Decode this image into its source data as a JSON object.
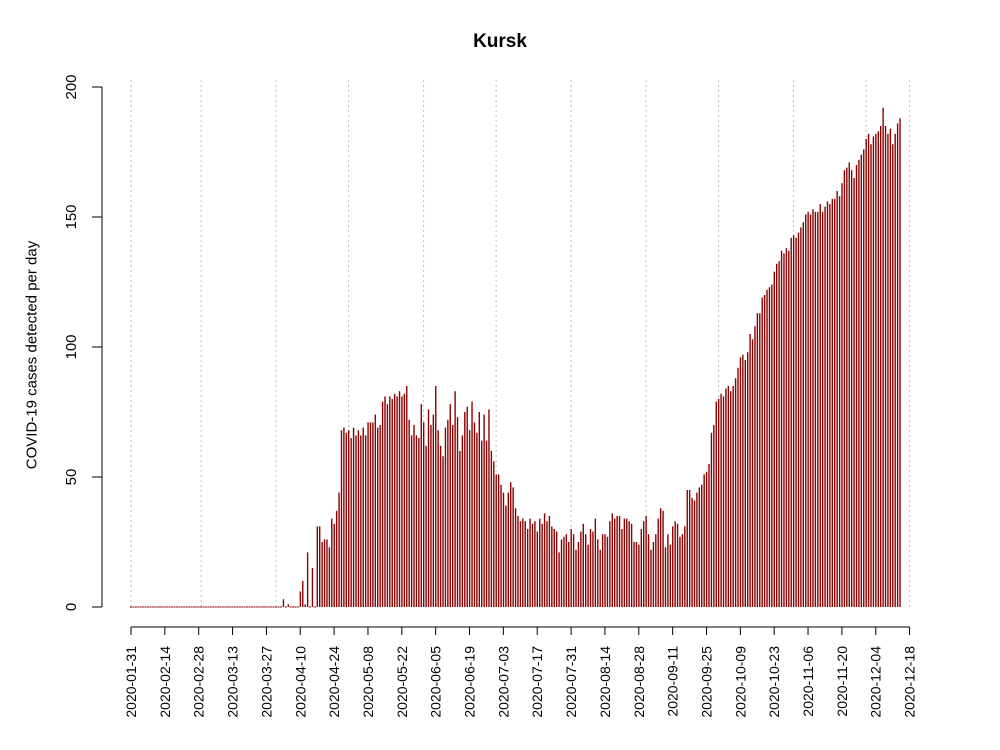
{
  "chart_data": {
    "type": "bar",
    "title": "Kursk",
    "ylabel": "COVID-19 cases detected per day",
    "xlabel": "",
    "ylim": [
      0,
      200
    ],
    "yticks": [
      0,
      50,
      100,
      150,
      200
    ],
    "x_start": "2020-01-31",
    "x_end": "2020-12-23",
    "xticks": [
      "2020-01-31",
      "2020-02-14",
      "2020-02-28",
      "2020-03-13",
      "2020-03-27",
      "2020-04-10",
      "2020-04-24",
      "2020-05-08",
      "2020-05-22",
      "2020-06-05",
      "2020-06-19",
      "2020-07-03",
      "2020-07-17",
      "2020-07-31",
      "2020-08-14",
      "2020-08-28",
      "2020-09-11",
      "2020-09-25",
      "2020-10-09",
      "2020-10-23",
      "2020-11-06",
      "2020-11-20",
      "2020-12-04",
      "2020-12-18"
    ],
    "gridlines_dates": [
      "2020-01-31",
      "2020-02-29",
      "2020-03-31",
      "2020-04-30",
      "2020-05-31",
      "2020-06-30",
      "2020-07-31",
      "2020-08-31",
      "2020-09-30",
      "2020-10-31",
      "2020-11-30",
      "2020-12-18"
    ],
    "bar_color": "#8b0000",
    "grid_color": "#bebebe",
    "series": [
      {
        "values": [
          0,
          0,
          0,
          0,
          0,
          0,
          0,
          0,
          0,
          0,
          0,
          0,
          0,
          0,
          0,
          0,
          0,
          0,
          0,
          0,
          0,
          0,
          0,
          0,
          0,
          0,
          0,
          0,
          0,
          0,
          0,
          0,
          0,
          0,
          0,
          0,
          0,
          0,
          0,
          0,
          0,
          0,
          0,
          0,
          0,
          0,
          0,
          0,
          0,
          0,
          0,
          0,
          0,
          0,
          0,
          0,
          0,
          0,
          0,
          0,
          0,
          0,
          0,
          3,
          0,
          1,
          0,
          0,
          0,
          0,
          6,
          10,
          1,
          21,
          0,
          15,
          0,
          31,
          31,
          25,
          26,
          26,
          23,
          34,
          32,
          37,
          44,
          68,
          69,
          67,
          68,
          65,
          69,
          66,
          68,
          66,
          69,
          66,
          71,
          71,
          71,
          74,
          69,
          70,
          79,
          81,
          78,
          81,
          80,
          82,
          81,
          83,
          81,
          82,
          85,
          72,
          66,
          70,
          66,
          65,
          78,
          71,
          62,
          76,
          70,
          74,
          85,
          68,
          62,
          58,
          69,
          72,
          78,
          70,
          83,
          73,
          60,
          66,
          75,
          77,
          68,
          79,
          71,
          67,
          75,
          64,
          74,
          64,
          76,
          60,
          56,
          51,
          51,
          47,
          44,
          39,
          44,
          48,
          46,
          38,
          35,
          33,
          34,
          33,
          30,
          34,
          32,
          33,
          29,
          34,
          32,
          36,
          33,
          35,
          31,
          30,
          29,
          21,
          26,
          27,
          28,
          25,
          30,
          28,
          22,
          25,
          29,
          32,
          28,
          24,
          30,
          29,
          34,
          26,
          22,
          28,
          28,
          27,
          33,
          36,
          34,
          35,
          35,
          30,
          34,
          34,
          33,
          32,
          25,
          25,
          24,
          30,
          33,
          35,
          28,
          22,
          25,
          28,
          34,
          38,
          37,
          23,
          28,
          24,
          31,
          33,
          32,
          27,
          28,
          31,
          45,
          45,
          42,
          41,
          44,
          46,
          47,
          51,
          52,
          55,
          67,
          70,
          79,
          80,
          82,
          81,
          84,
          85,
          83,
          85,
          88,
          92,
          96,
          97,
          95,
          98,
          105,
          103,
          108,
          113,
          113,
          119,
          120,
          122,
          123,
          124,
          129,
          132,
          133,
          137,
          136,
          138,
          137,
          142,
          143,
          142,
          144,
          146,
          148,
          151,
          152,
          151,
          153,
          152,
          152,
          155,
          152,
          154,
          156,
          155,
          157,
          157,
          160,
          158,
          163,
          168,
          169,
          171,
          168,
          165,
          170,
          172,
          174,
          176,
          180,
          182,
          178,
          181,
          182,
          183,
          185,
          192,
          185,
          182,
          184,
          178,
          182,
          186,
          188
        ]
      }
    ]
  }
}
